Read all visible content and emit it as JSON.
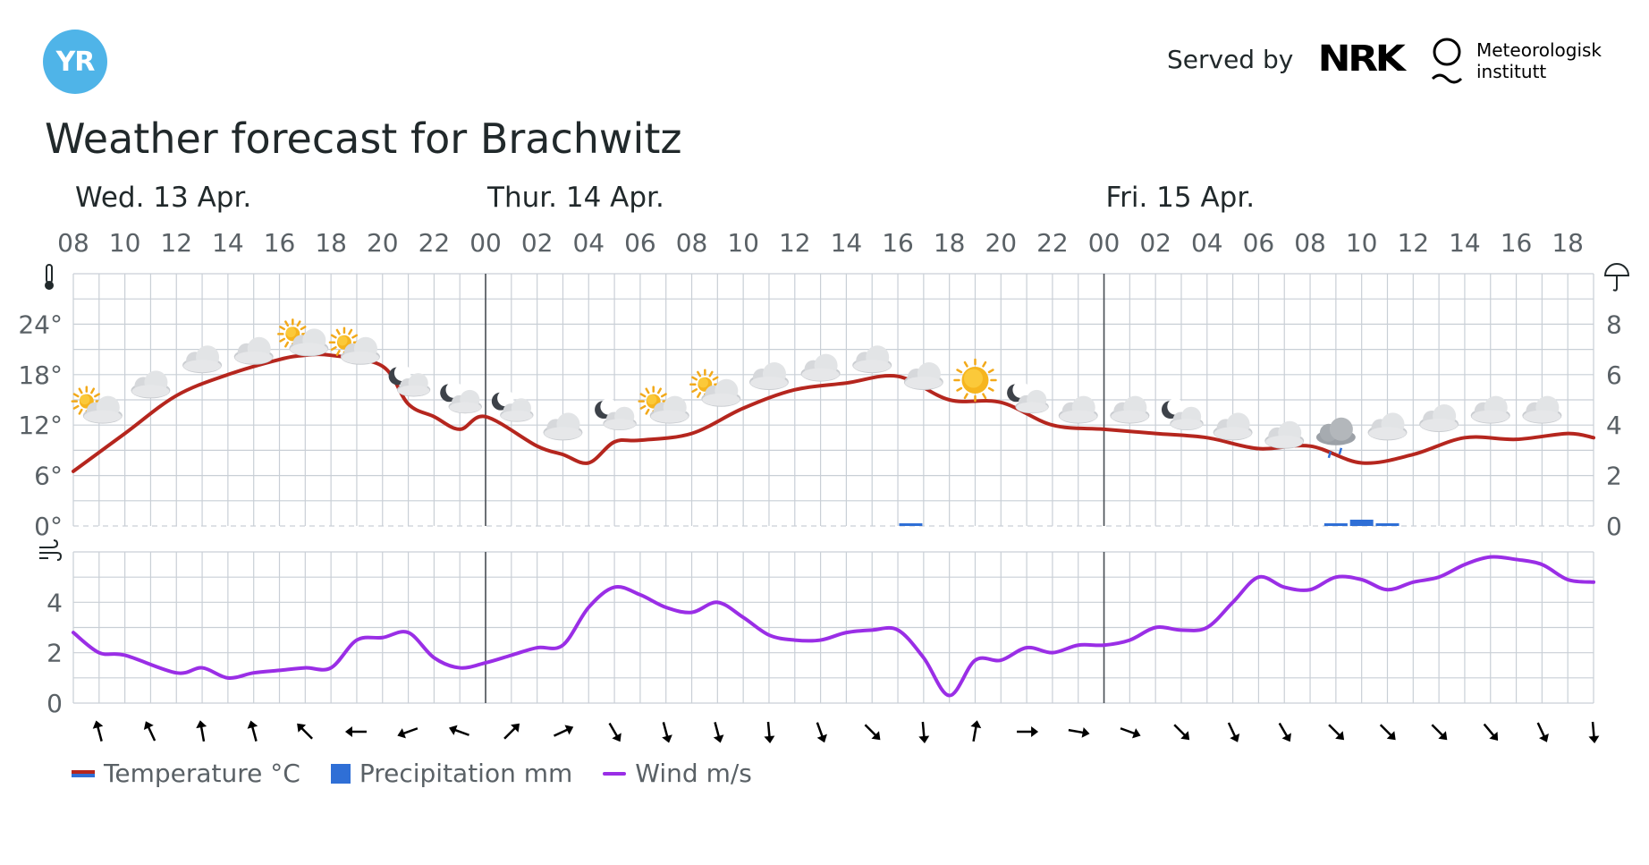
{
  "header": {
    "logo_text": "YR",
    "served_by": "Served by",
    "nrk_text": "NRK",
    "met_line1": "Meteorologisk",
    "met_line2": "institutt"
  },
  "page_title": "Weather forecast for Brachwitz",
  "colors": {
    "temperature": "#b5261e",
    "precipitation": "#2f6fd6",
    "wind": "#9a2ee6",
    "grid": "#c9cfd6",
    "logo": "#4fb4e8"
  },
  "legend": [
    {
      "label": "Temperature °C",
      "icon": "temperature-line-swatch"
    },
    {
      "label": "Precipitation mm",
      "icon": "precipitation-bar-swatch"
    },
    {
      "label": "Wind m/s",
      "icon": "wind-line-swatch"
    }
  ],
  "chart_data": {
    "type": "line",
    "start": "Wed. 13 Apr. 08:00",
    "day_labels": [
      {
        "label": "Wed. 13 Apr.",
        "hour": 0
      },
      {
        "label": "Thur. 14 Apr.",
        "hour": 16
      },
      {
        "label": "Fri. 15 Apr.",
        "hour": 40
      }
    ],
    "hour_ticks": [
      "08",
      "10",
      "12",
      "14",
      "16",
      "18",
      "20",
      "22",
      "00",
      "02",
      "04",
      "06",
      "08",
      "10",
      "12",
      "14",
      "16",
      "18",
      "20",
      "22",
      "00",
      "02",
      "04",
      "06",
      "08",
      "10",
      "12",
      "14",
      "16",
      "18"
    ],
    "day_separators_hour": [
      16,
      40
    ],
    "temperature_axis": {
      "icon": "thermometer-icon",
      "ticks": [
        "24°",
        "18°",
        "12°",
        "6°",
        "0°"
      ],
      "ylim": [
        0,
        30
      ]
    },
    "precipitation_axis": {
      "icon": "umbrella-icon",
      "ticks": [
        "8",
        "6",
        "4",
        "2",
        "0"
      ],
      "ylim": [
        0,
        10
      ]
    },
    "wind_axis": {
      "icon": "wind-icon",
      "ticks": [
        "4",
        "2",
        "0"
      ],
      "ylim": [
        0,
        6
      ]
    },
    "temperature": {
      "name": "Temperature °C",
      "x": [
        0,
        2,
        4,
        6,
        8,
        9,
        10,
        12,
        13,
        14,
        15,
        16,
        18,
        19,
        20,
        21,
        22,
        24,
        26,
        28,
        30,
        32,
        34,
        36,
        38,
        40,
        42,
        44,
        46,
        48,
        50,
        52,
        54,
        56,
        58,
        59
      ],
      "values": [
        6.5,
        11,
        15.5,
        18,
        19.8,
        20.3,
        20.3,
        19,
        14.5,
        13,
        11.5,
        13,
        9.5,
        8.5,
        7.5,
        10,
        10.2,
        11,
        14,
        16.2,
        17,
        17.8,
        15,
        14.7,
        12,
        11.5,
        11,
        10.5,
        9.2,
        9.5,
        7.5,
        8.5,
        10.5,
        10.3,
        11,
        10.5
      ]
    },
    "precipitation": {
      "name": "Precipitation mm",
      "bars": [
        {
          "hour": 32.5,
          "value": 0.08
        },
        {
          "hour": 49,
          "value": 0.1
        },
        {
          "hour": 50,
          "value": 0.25
        },
        {
          "hour": 51,
          "value": 0.1
        }
      ]
    },
    "wind": {
      "name": "Wind m/s",
      "x": [
        0,
        1,
        2,
        4,
        5,
        6,
        7,
        8,
        9,
        10,
        11,
        12,
        13,
        14,
        15,
        16,
        17,
        18,
        19,
        20,
        21,
        22,
        23,
        24,
        25,
        26,
        27,
        28,
        29,
        30,
        31,
        32,
        33,
        34,
        35,
        36,
        37,
        38,
        39,
        40,
        41,
        42,
        43,
        44,
        45,
        46,
        47,
        48,
        49,
        50,
        51,
        52,
        53,
        54,
        55,
        56,
        57,
        58,
        59
      ],
      "values": [
        2.8,
        2.0,
        1.9,
        1.2,
        1.4,
        1.0,
        1.2,
        1.3,
        1.4,
        1.4,
        2.5,
        2.6,
        2.8,
        1.8,
        1.4,
        1.6,
        1.9,
        2.2,
        2.3,
        3.8,
        4.6,
        4.3,
        3.8,
        3.6,
        4.0,
        3.4,
        2.7,
        2.5,
        2.5,
        2.8,
        2.9,
        2.9,
        1.8,
        0.3,
        1.7,
        1.7,
        2.2,
        2.0,
        2.3,
        2.3,
        2.5,
        3.0,
        2.9,
        3.0,
        4.0,
        5.0,
        4.6,
        4.5,
        5.0,
        4.9,
        4.5,
        4.8,
        5.0,
        5.5,
        5.8,
        5.7,
        5.5,
        4.9,
        4.8
      ]
    },
    "wind_directions": [
      {
        "hour": 1,
        "deg": 165
      },
      {
        "hour": 3,
        "deg": 155
      },
      {
        "hour": 5,
        "deg": 170
      },
      {
        "hour": 7,
        "deg": 165
      },
      {
        "hour": 9,
        "deg": 135
      },
      {
        "hour": 11,
        "deg": 90
      },
      {
        "hour": 13,
        "deg": 70
      },
      {
        "hour": 15,
        "deg": 110
      },
      {
        "hour": 17,
        "deg": 225
      },
      {
        "hour": 19,
        "deg": 245
      },
      {
        "hour": 21,
        "deg": 330
      },
      {
        "hour": 23,
        "deg": 345
      },
      {
        "hour": 25,
        "deg": 345
      },
      {
        "hour": 27,
        "deg": 355
      },
      {
        "hour": 29,
        "deg": 340
      },
      {
        "hour": 31,
        "deg": 315
      },
      {
        "hour": 33,
        "deg": 355
      },
      {
        "hour": 35,
        "deg": 190
      },
      {
        "hour": 37,
        "deg": 270
      },
      {
        "hour": 39,
        "deg": 280
      },
      {
        "hour": 41,
        "deg": 290
      },
      {
        "hour": 43,
        "deg": 315
      },
      {
        "hour": 45,
        "deg": 335
      },
      {
        "hour": 47,
        "deg": 330
      },
      {
        "hour": 49,
        "deg": 315
      },
      {
        "hour": 51,
        "deg": 315
      },
      {
        "hour": 53,
        "deg": 315
      },
      {
        "hour": 55,
        "deg": 320
      },
      {
        "hour": 57,
        "deg": 335
      },
      {
        "hour": 59,
        "deg": 355
      }
    ],
    "weather_symbols": [
      {
        "hour": 1,
        "symbol": "partly-cloudy-day",
        "temp": 11
      },
      {
        "hour": 3,
        "symbol": "cloudy",
        "temp": 14
      },
      {
        "hour": 5,
        "symbol": "cloudy",
        "temp": 17
      },
      {
        "hour": 7,
        "symbol": "cloudy",
        "temp": 18
      },
      {
        "hour": 9,
        "symbol": "partly-cloudy-day",
        "temp": 19
      },
      {
        "hour": 11,
        "symbol": "partly-cloudy-day",
        "temp": 18
      },
      {
        "hour": 13,
        "symbol": "partly-cloudy-night",
        "temp": 14
      },
      {
        "hour": 15,
        "symbol": "partly-cloudy-night",
        "temp": 12
      },
      {
        "hour": 17,
        "symbol": "partly-cloudy-night",
        "temp": 11
      },
      {
        "hour": 19,
        "symbol": "cloudy",
        "temp": 9
      },
      {
        "hour": 21,
        "symbol": "partly-cloudy-night",
        "temp": 10
      },
      {
        "hour": 23,
        "symbol": "partly-cloudy-day",
        "temp": 11
      },
      {
        "hour": 25,
        "symbol": "partly-cloudy-day",
        "temp": 13
      },
      {
        "hour": 27,
        "symbol": "cloudy",
        "temp": 15
      },
      {
        "hour": 29,
        "symbol": "cloudy",
        "temp": 16
      },
      {
        "hour": 31,
        "symbol": "cloudy",
        "temp": 17
      },
      {
        "hour": 33,
        "symbol": "cloudy",
        "temp": 15
      },
      {
        "hour": 35,
        "symbol": "clear-day",
        "temp": 15
      },
      {
        "hour": 37,
        "symbol": "partly-cloudy-night",
        "temp": 12
      },
      {
        "hour": 39,
        "symbol": "cloudy",
        "temp": 11
      },
      {
        "hour": 41,
        "symbol": "cloudy",
        "temp": 11
      },
      {
        "hour": 43,
        "symbol": "partly-cloudy-night",
        "temp": 10
      },
      {
        "hour": 45,
        "symbol": "cloudy",
        "temp": 9
      },
      {
        "hour": 47,
        "symbol": "cloudy",
        "temp": 8
      },
      {
        "hour": 49,
        "symbol": "light-rain",
        "temp": 8
      },
      {
        "hour": 51,
        "symbol": "cloudy",
        "temp": 9
      },
      {
        "hour": 53,
        "symbol": "cloudy",
        "temp": 10
      },
      {
        "hour": 55,
        "symbol": "cloudy",
        "temp": 11
      },
      {
        "hour": 57,
        "symbol": "cloudy",
        "temp": 11
      }
    ]
  }
}
